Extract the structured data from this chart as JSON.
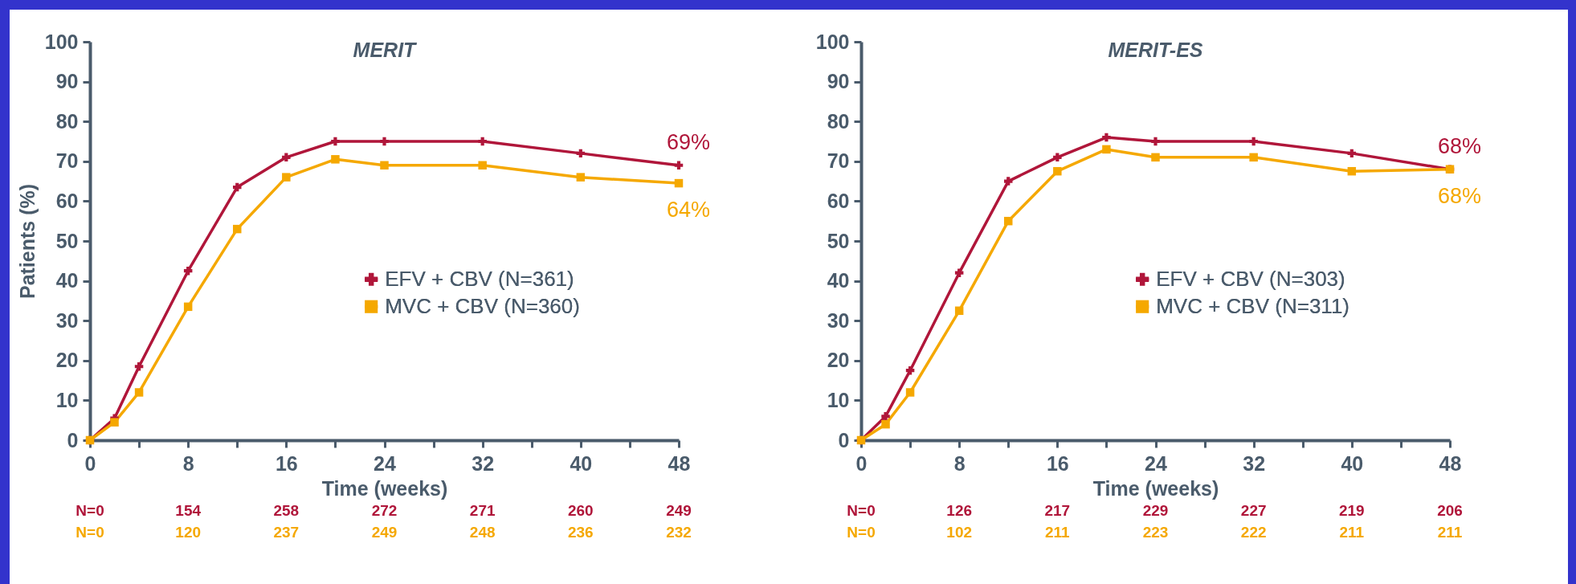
{
  "chart_data": [
    {
      "type": "line",
      "title": "MERIT",
      "xlabel": "Time (weeks)",
      "ylabel": "Patients (%)",
      "x": [
        0,
        2,
        4,
        8,
        12,
        16,
        20,
        24,
        32,
        40,
        48
      ],
      "series": [
        {
          "name": "EFV + CBV (N=361)",
          "color": "#b0163a",
          "marker": "cross",
          "values": [
            0,
            5.5,
            18.5,
            42.5,
            63.5,
            71,
            75,
            75,
            75,
            72,
            69
          ],
          "value_labels": [
            null,
            null,
            null,
            null,
            null,
            null,
            null,
            null,
            null,
            null,
            "69%"
          ]
        },
        {
          "name": "MVC + CBV (N=360)",
          "color": "#f5a800",
          "marker": "square",
          "values": [
            0,
            4.5,
            12,
            33.5,
            53,
            66,
            70.5,
            69,
            69,
            66,
            64.5
          ],
          "value_labels": [
            null,
            null,
            null,
            null,
            null,
            null,
            null,
            null,
            null,
            null,
            "64%"
          ]
        }
      ],
      "xlim": [
        0,
        48
      ],
      "xticks": [
        0,
        {
          "value": 4,
          "label": null
        },
        8,
        {
          "value": 12,
          "label": null
        },
        16,
        {
          "value": 20,
          "label": null
        },
        24,
        {
          "value": 28,
          "label": null
        },
        32,
        {
          "value": 36,
          "label": null
        },
        40,
        {
          "value": 44,
          "label": null
        },
        48
      ],
      "ylim": [
        0,
        100
      ],
      "yticks": [
        0,
        10,
        20,
        30,
        40,
        50,
        60,
        70,
        80,
        90,
        100
      ],
      "legend": "right",
      "line_style": "solid",
      "annotations": [
        "N=0",
        "154",
        "258",
        "272",
        "271",
        "260",
        "249",
        "N=0",
        "120",
        "237",
        "249",
        "248",
        "236",
        "232"
      ]
    },
    {
      "type": "line",
      "title": "MERIT-ES",
      "xlabel": "Time (weeks)",
      "x": [
        0,
        2,
        4,
        8,
        12,
        16,
        20,
        24,
        32,
        40,
        48
      ],
      "series": [
        {
          "name": "EFV + CBV (N=303)",
          "color": "#b0163a",
          "marker": "cross",
          "values": [
            0,
            6,
            17.5,
            42,
            65,
            71,
            76,
            75,
            75,
            72,
            68
          ],
          "value_labels": [
            null,
            null,
            null,
            null,
            null,
            null,
            null,
            null,
            null,
            null,
            "68%"
          ]
        },
        {
          "name": "MVC + CBV (N=311)",
          "color": "#f5a800",
          "marker": "square",
          "values": [
            0,
            4,
            12,
            32.5,
            55,
            67.5,
            73,
            71,
            71,
            67.5,
            68
          ],
          "value_labels": [
            null,
            null,
            null,
            null,
            null,
            null,
            null,
            null,
            null,
            null,
            "68%"
          ]
        }
      ],
      "xlim": [
        0,
        48
      ],
      "xticks": [
        0,
        {
          "value": 4,
          "label": null
        },
        8,
        {
          "value": 12,
          "label": null
        },
        16,
        {
          "value": 20,
          "label": null
        },
        24,
        {
          "value": 28,
          "label": null
        },
        32,
        {
          "value": 36,
          "label": null
        },
        40,
        {
          "value": 44,
          "label": null
        },
        48
      ],
      "ylim": [
        0,
        100
      ],
      "yticks": [
        0,
        10,
        20,
        30,
        40,
        50,
        60,
        70,
        80,
        90,
        100
      ],
      "legend": "right",
      "line_style": "solid",
      "annotations": [
        "N=0",
        "126",
        "217",
        "229",
        "227",
        "219",
        "206",
        "N=0",
        "102",
        "211",
        "223",
        "222",
        "211",
        "211"
      ]
    }
  ]
}
